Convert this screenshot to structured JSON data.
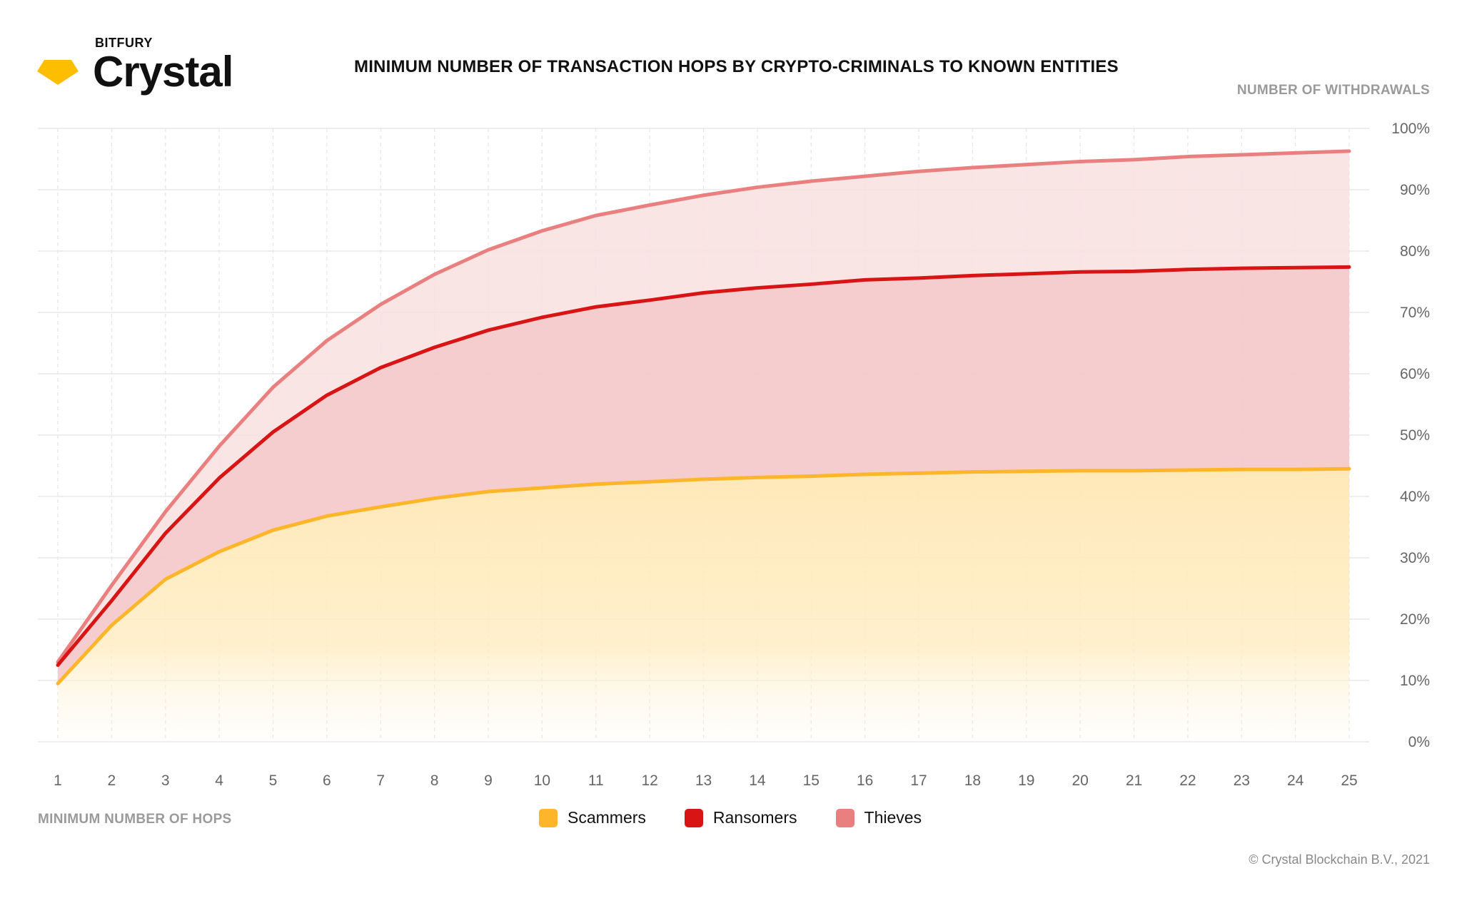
{
  "brand": {
    "small": "BITFURY",
    "big": "Crystal",
    "logo_color": "#FDBE00"
  },
  "copyright": "© Crystal Blockchain B.V., 2021",
  "chart_data": {
    "type": "area",
    "title": "MINIMUM NUMBER OF TRANSACTION HOPS BY CRYPTO-CRIMINALS TO KNOWN ENTITIES",
    "xlabel": "MINIMUM NUMBER OF HOPS",
    "ylabel": "NUMBER OF WITHDRAWALS",
    "x": [
      1,
      2,
      3,
      4,
      5,
      6,
      7,
      8,
      9,
      10,
      11,
      12,
      13,
      14,
      15,
      16,
      17,
      18,
      19,
      20,
      21,
      22,
      23,
      24,
      25
    ],
    "xlim": [
      1,
      25
    ],
    "ylim": [
      0,
      100
    ],
    "yticks": [
      0,
      10,
      20,
      30,
      40,
      50,
      60,
      70,
      80,
      90,
      100
    ],
    "ytick_labels": [
      "0%",
      "10%",
      "20%",
      "30%",
      "40%",
      "50%",
      "60%",
      "70%",
      "80%",
      "90%",
      "100%"
    ],
    "grid": true,
    "legend_position": "bottom-center",
    "series": [
      {
        "name": "Scammers",
        "color": "#FDB52A",
        "values": [
          9.5,
          19,
          26.5,
          31,
          34.5,
          36.8,
          38.3,
          39.7,
          40.8,
          41.4,
          42.0,
          42.4,
          42.8,
          43.1,
          43.3,
          43.6,
          43.8,
          44.0,
          44.1,
          44.2,
          44.2,
          44.3,
          44.4,
          44.4,
          44.5
        ]
      },
      {
        "name": "Ransomers",
        "color": "#D91414",
        "values": [
          12.5,
          23,
          34,
          43,
          50.5,
          56.5,
          61.0,
          64.3,
          67.1,
          69.2,
          70.9,
          72.0,
          73.2,
          74.0,
          74.6,
          75.3,
          75.6,
          76.0,
          76.3,
          76.6,
          76.7,
          77.0,
          77.2,
          77.3,
          77.4
        ]
      },
      {
        "name": "Thieves",
        "color": "#EA7F7F",
        "values": [
          13.0,
          25.5,
          37.5,
          48.2,
          57.8,
          65.4,
          71.3,
          76.2,
          80.2,
          83.3,
          85.8,
          87.5,
          89.1,
          90.4,
          91.4,
          92.2,
          93.0,
          93.6,
          94.1,
          94.6,
          94.9,
          95.4,
          95.7,
          96.0,
          96.3
        ]
      }
    ]
  }
}
